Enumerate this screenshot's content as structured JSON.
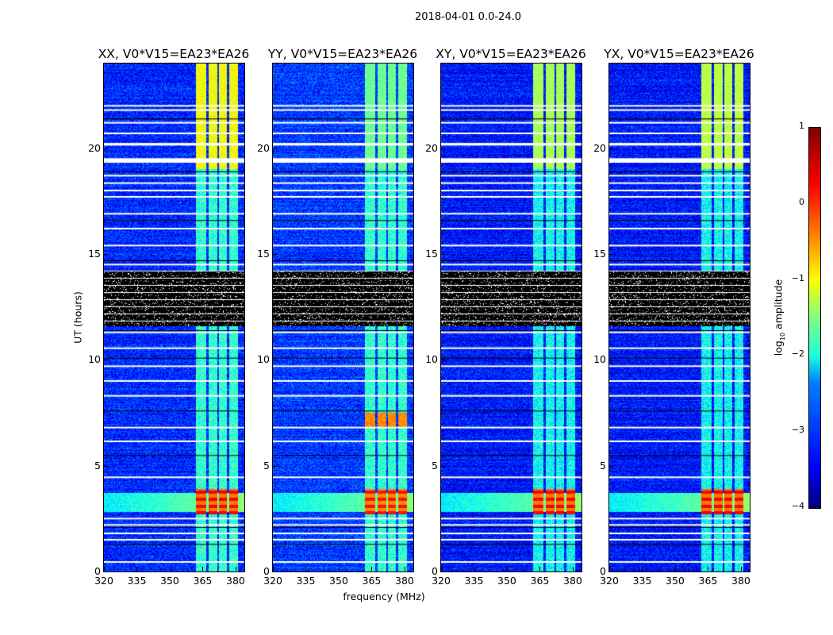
{
  "suptitle": "2018-04-01 0.0-24.0",
  "chart_data": {
    "type": "heatmap",
    "xlabel": "frequency (MHz)",
    "ylabel": "UT (hours)",
    "xlim": [
      320,
      384
    ],
    "ylim": [
      0,
      24
    ],
    "xticks": [
      "320",
      "335",
      "350",
      "365",
      "380"
    ],
    "xtick_values": [
      320,
      335,
      350,
      365,
      380
    ],
    "yticks": [
      "0",
      "5",
      "10",
      "15",
      "20"
    ],
    "ytick_values": [
      0,
      5,
      10,
      15,
      20
    ],
    "colormap": "jet",
    "colorbar": {
      "label_prefix": "log",
      "label_sub": "10",
      "label_suffix": " amplitude",
      "range": [
        -4,
        1
      ],
      "ticks": [
        "1",
        "0",
        "−1",
        "−2",
        "−3",
        "−4"
      ],
      "tick_values": [
        1,
        0,
        -1,
        -2,
        -3,
        -4
      ]
    },
    "panels": [
      {
        "title": "XX, V0*V15=EA23*EA26",
        "background": -3.2,
        "band_level": -1.9,
        "top_level": -0.9,
        "hot_level": 0.4
      },
      {
        "title": "YY, V0*V15=EA23*EA26",
        "background": -3.1,
        "band_level": -1.9,
        "top_level": -1.6,
        "hot_level": 0.3,
        "hot2_level": -0.3
      },
      {
        "title": "XY, V0*V15=EA23*EA26",
        "background": -3.3,
        "band_level": -2.1,
        "top_level": -1.3,
        "hot_level": 0.4
      },
      {
        "title": "YX, V0*V15=EA23*EA26",
        "background": -3.3,
        "band_level": -2.1,
        "top_level": -1.2,
        "hot_level": 0.4
      }
    ],
    "bright_channels_mhz": [
      [
        362,
        366.8
      ],
      [
        367.6,
        371.6
      ],
      [
        372.4,
        376.2
      ],
      [
        377,
        381
      ]
    ],
    "hot_hours": [
      2.7,
      3.9
    ],
    "hot2_hours": [
      6.8,
      7.5
    ],
    "wideband_hours": [
      2.8,
      3.7
    ],
    "flagged_black_hours": [
      11.6,
      14.2
    ],
    "black_lines_hours": [
      1.3,
      2.1,
      5.5,
      7.6,
      10.1,
      11.4,
      14.7,
      16.6,
      18.9,
      21.4
    ],
    "white_gap_hours": [
      0.45,
      1.5,
      1.8,
      2.2,
      2.5,
      4.45,
      6.15,
      6.8,
      8.3,
      9.0,
      9.7,
      10.55,
      11.3,
      14.5,
      15.4,
      16.2,
      16.9,
      17.7,
      18.0,
      18.35,
      18.7,
      19.35,
      19.45,
      20.2,
      20.7,
      21.2,
      21.8,
      22.0
    ]
  }
}
